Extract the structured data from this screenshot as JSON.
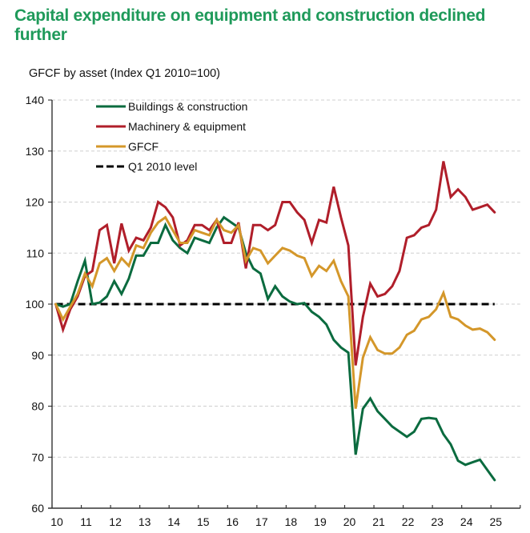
{
  "title": "Capital expenditure on equipment and construction declined further",
  "subtitle": "GFCF by asset (Index Q1 2010=100)",
  "chart_data": {
    "type": "line",
    "title": "Capital expenditure on equipment and construction declined further",
    "subtitle": "GFCF by asset (Index Q1 2010=100)",
    "xlabel": "",
    "ylabel": "",
    "x_start": "2010 Q1",
    "x_frequency": "quarterly",
    "xlim": [
      10,
      26
    ],
    "ylim": [
      60,
      140
    ],
    "yticks": [
      60,
      70,
      80,
      90,
      100,
      110,
      120,
      130,
      140
    ],
    "xticks": [
      "10",
      "11",
      "12",
      "13",
      "14",
      "15",
      "16",
      "17",
      "18",
      "19",
      "20",
      "21",
      "22",
      "23",
      "24",
      "25"
    ],
    "grid": "horizontal dashed",
    "legend_position": "top-left",
    "series": [
      {
        "name": "Buildings & construction",
        "color": "#0b6b3f",
        "values": [
          100,
          99.5,
          100,
          104.5,
          108.5,
          100,
          100.3,
          101.5,
          104.5,
          102,
          105,
          109.5,
          109.5,
          112,
          112,
          115.5,
          112.5,
          111,
          110,
          113,
          112.5,
          112,
          115,
          117,
          116,
          115,
          110,
          107,
          106,
          101,
          103.5,
          101.5,
          100.5,
          100,
          100.2,
          98.5,
          97.5,
          96,
          93,
          91.5,
          90.5,
          70.5,
          79.5,
          81.5,
          79,
          77.5,
          76,
          75,
          74,
          75,
          77.5,
          77.7,
          77.5,
          74.5,
          72.5,
          69.3,
          68.5,
          69,
          69.5,
          67.5,
          65.5
        ]
      },
      {
        "name": "Machinery & equipment",
        "color": "#b01e2a",
        "values": [
          100,
          95,
          99,
          101.5,
          105.5,
          106.5,
          114.5,
          115.5,
          108,
          115.8,
          110.5,
          113,
          112.5,
          115,
          120,
          119,
          117,
          111.5,
          112.5,
          115.5,
          115.5,
          114.5,
          116.5,
          112,
          112,
          116,
          107,
          115.5,
          115.5,
          114.5,
          115.5,
          120,
          120,
          118,
          116.5,
          112,
          116.5,
          116,
          123,
          117,
          111.5,
          88,
          97.5,
          104,
          101.5,
          102,
          103.5,
          106.5,
          113,
          113.5,
          115,
          115.5,
          118.5,
          128,
          121,
          122.5,
          121,
          118.5,
          119,
          119.5,
          118
        ]
      },
      {
        "name": "GFCF",
        "color": "#d4972a",
        "values": [
          100,
          97,
          99.5,
          102,
          106,
          103.5,
          108,
          109,
          106.5,
          109,
          107.5,
          111.5,
          111,
          114,
          116,
          117,
          114.5,
          112,
          112,
          114.5,
          114,
          113.5,
          116.5,
          114.5,
          114,
          115.5,
          108.5,
          111,
          110.5,
          108,
          109.5,
          111,
          110.5,
          109.5,
          109,
          105.5,
          107.5,
          106.5,
          108.5,
          104.5,
          101.5,
          79.5,
          89.5,
          93.5,
          91,
          90.3,
          90.3,
          91.5,
          94,
          94.8,
          97,
          97.5,
          99,
          102.2,
          97.5,
          97,
          95.8,
          95,
          95.2,
          94.5,
          93
        ]
      },
      {
        "name": "Q1 2010 level",
        "color": "#000000",
        "dashed": true,
        "values_constant": 100
      }
    ]
  }
}
